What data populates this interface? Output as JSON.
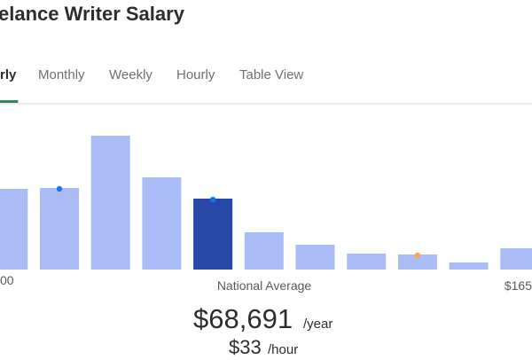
{
  "header": {
    "title": "elance Writer Salary"
  },
  "tabs": [
    {
      "label": "rly",
      "active": true
    },
    {
      "label": "Monthly",
      "active": false
    },
    {
      "label": "Weekly",
      "active": false
    },
    {
      "label": "Hourly",
      "active": false
    },
    {
      "label": "Table View",
      "active": false
    }
  ],
  "histogram": {
    "bars": [
      {
        "value": 91,
        "color": "#a9bcf5"
      },
      {
        "value": 92,
        "color": "#a9bcf5",
        "marker": "#1a73e8"
      },
      {
        "value": 151,
        "color": "#a9bcf5"
      },
      {
        "value": 104,
        "color": "#a9bcf5"
      },
      {
        "value": 80,
        "color": "#2748a6",
        "marker": "#1a73e8"
      },
      {
        "value": 42,
        "color": "#a9bcf5"
      },
      {
        "value": 28,
        "color": "#a9bcf5"
      },
      {
        "value": 18,
        "color": "#a9bcf5"
      },
      {
        "value": 17,
        "color": "#a9bcf5",
        "marker": "#f5a742"
      },
      {
        "value": 8,
        "color": "#a9bcf5"
      },
      {
        "value": 24,
        "color": "#a9bcf5"
      }
    ],
    "axis_labels": {
      "left": "00",
      "center": "National Average",
      "right": "$165"
    }
  },
  "summary": {
    "yearly": "$68,691",
    "yearly_unit": "/year",
    "hourly": "$33",
    "hourly_unit": "/hour"
  }
}
